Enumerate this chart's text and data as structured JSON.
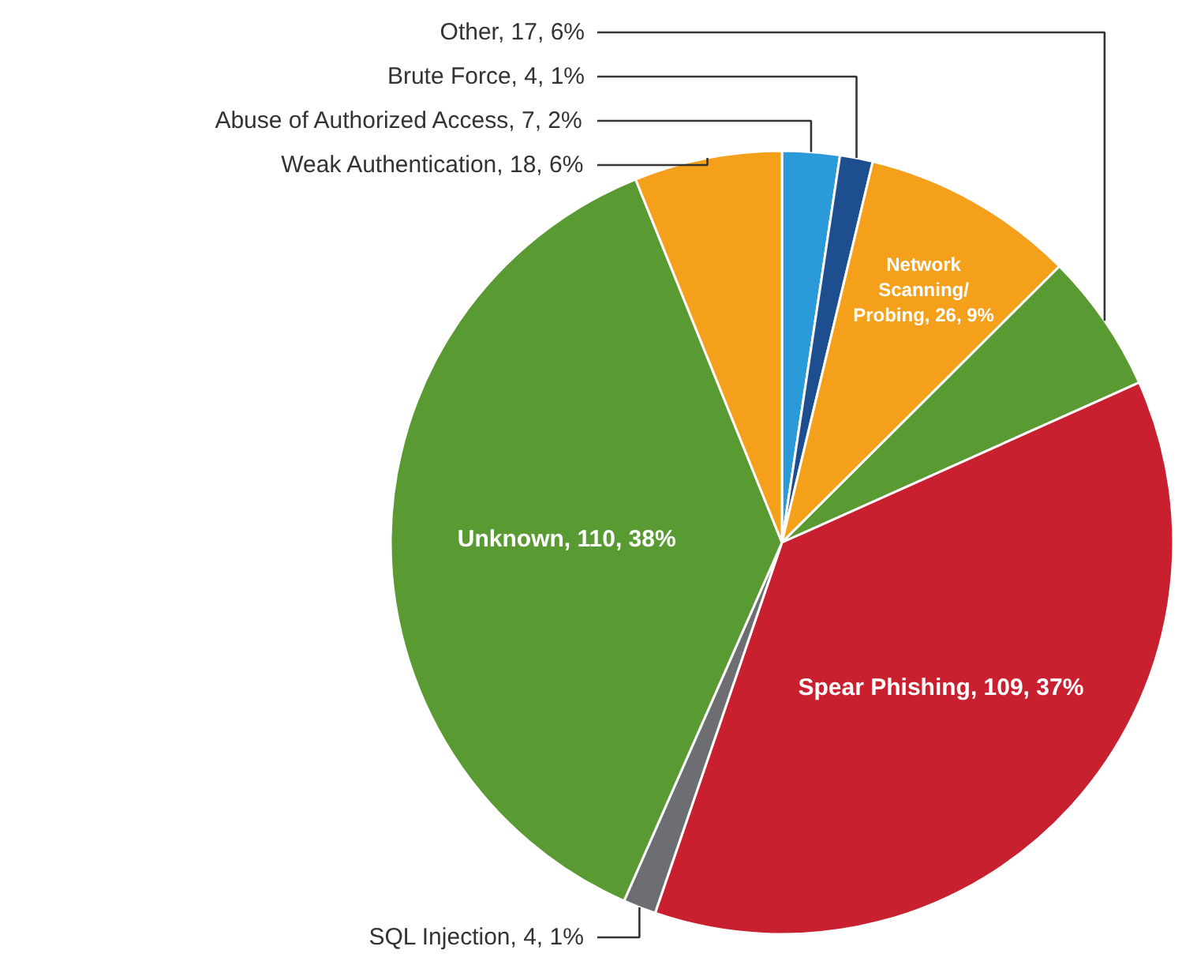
{
  "chart_data": {
    "type": "pie",
    "categories": [
      "Abuse of Authorized Access",
      "Brute Force",
      "Network Scanning/Probing",
      "Other",
      "Spear Phishing",
      "SQL Injection",
      "Unknown",
      "Weak Authentication"
    ],
    "values": [
      7,
      4,
      26,
      17,
      109,
      4,
      110,
      18
    ],
    "colors": [
      "#2a9ad8",
      "#1d4e8f",
      "#f5a01a",
      "#5a9a32",
      "#c8202f",
      "#6d6e71",
      "#5a9a32",
      "#f5a01a"
    ],
    "value_labels": [
      "7, 2%",
      "4, 1%",
      "26, 9%",
      "17, 6%",
      "109, 37%",
      "4, 1%",
      "110, 38%",
      "18, 6%"
    ]
  }
}
